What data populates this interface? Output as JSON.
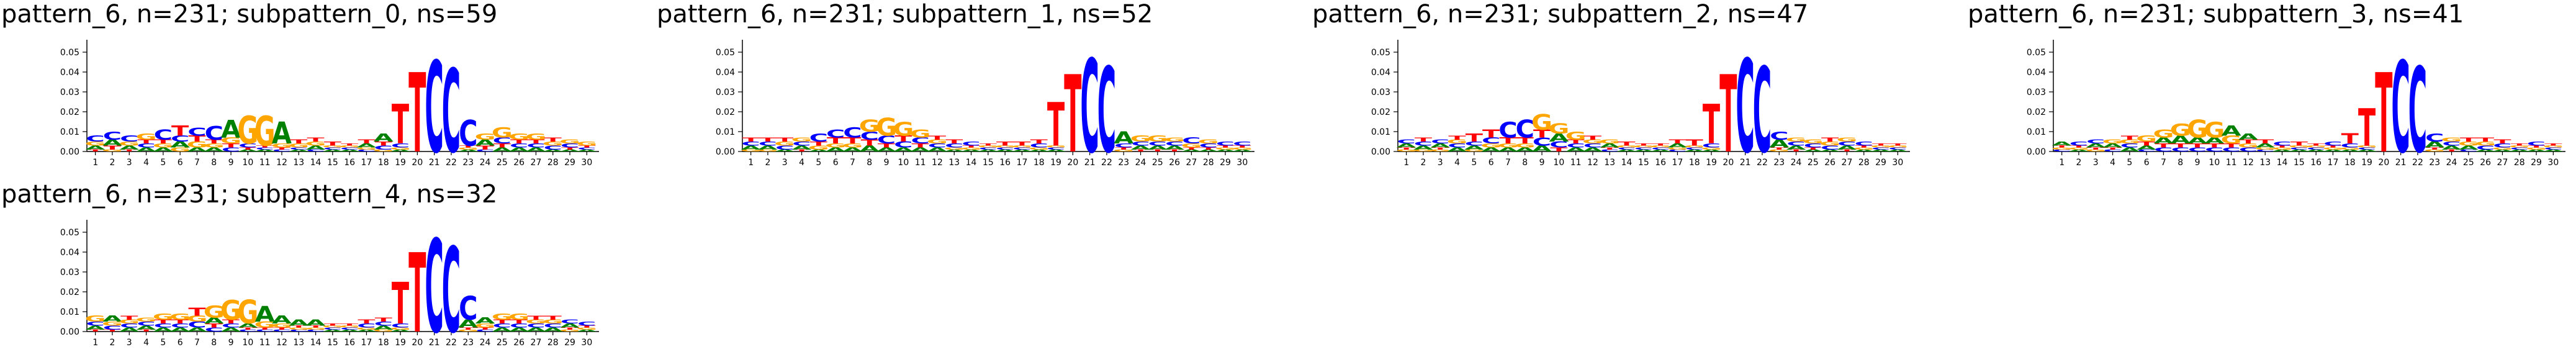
{
  "colors": {
    "A": "#008000",
    "C": "#0000ff",
    "G": "#ffa500",
    "T": "#ff0000",
    "axis": "#000000"
  },
  "chart_data": [
    {
      "type": "sequence-logo",
      "title": "pattern_6, n=231; subpattern_0, ns=59",
      "ylim": [
        0,
        0.055
      ],
      "yticks": [
        "0.00",
        "0.01",
        "0.02",
        "0.03",
        "0.04",
        "0.05"
      ],
      "xticks": [
        "1",
        "2",
        "3",
        "4",
        "5",
        "6",
        "7",
        "8",
        "9",
        "10",
        "11",
        "12",
        "13",
        "14",
        "15",
        "16",
        "17",
        "18",
        "19",
        "20",
        "21",
        "22",
        "23",
        "24",
        "25",
        "26",
        "27",
        "28",
        "29",
        "30"
      ],
      "positions": [
        {
          "A": 0.002,
          "C": 0.003,
          "G": 0.002,
          "T": 0.001
        },
        {
          "A": 0.003,
          "C": 0.004,
          "G": 0.001,
          "T": 0.002
        },
        {
          "A": 0.002,
          "C": 0.003,
          "G": 0.002,
          "T": 0.001
        },
        {
          "A": 0.002,
          "C": 0.002,
          "G": 0.003,
          "T": 0.002
        },
        {
          "A": 0.002,
          "C": 0.005,
          "G": 0.002,
          "T": 0.002
        },
        {
          "A": 0.003,
          "C": 0.003,
          "G": 0.002,
          "T": 0.005
        },
        {
          "A": 0.002,
          "C": 0.004,
          "G": 0.003,
          "T": 0.003
        },
        {
          "A": 0.002,
          "C": 0.007,
          "G": 0.002,
          "T": 0.002
        },
        {
          "A": 0.009,
          "C": 0.002,
          "G": 0.003,
          "T": 0.002
        },
        {
          "A": 0.001,
          "C": 0.002,
          "G": 0.014,
          "T": 0.001
        },
        {
          "A": 0.001,
          "C": 0.001,
          "G": 0.015,
          "T": 0.001
        },
        {
          "A": 0.011,
          "C": 0.001,
          "G": 0.002,
          "T": 0.001
        },
        {
          "A": 0.001,
          "C": 0.001,
          "G": 0.002,
          "T": 0.002
        },
        {
          "A": 0.002,
          "C": 0.001,
          "G": 0.002,
          "T": 0.002
        },
        {
          "A": 0.001,
          "C": 0.001,
          "G": 0.001,
          "T": 0.002
        },
        {
          "A": 0.001,
          "C": 0.001,
          "G": 0.001,
          "T": 0.001
        },
        {
          "A": 0.002,
          "C": 0.001,
          "G": 0.001,
          "T": 0.002
        },
        {
          "A": 0.004,
          "C": 0.002,
          "G": 0.001,
          "T": 0.002
        },
        {
          "A": 0.001,
          "C": 0.002,
          "G": 0.001,
          "T": 0.02
        },
        {
          "A": 0.0,
          "C": 0.0,
          "G": 0.0,
          "T": 0.04
        },
        {
          "A": 0.0,
          "C": 0.046,
          "G": 0.0,
          "T": 0.0
        },
        {
          "A": 0.0,
          "C": 0.042,
          "G": 0.0,
          "T": 0.0
        },
        {
          "A": 0.001,
          "C": 0.013,
          "G": 0.001,
          "T": 0.001
        },
        {
          "A": 0.003,
          "C": 0.001,
          "G": 0.003,
          "T": 0.002
        },
        {
          "A": 0.002,
          "C": 0.003,
          "G": 0.005,
          "T": 0.002
        },
        {
          "A": 0.002,
          "C": 0.002,
          "G": 0.003,
          "T": 0.002
        },
        {
          "A": 0.002,
          "C": 0.002,
          "G": 0.003,
          "T": 0.002
        },
        {
          "A": 0.001,
          "C": 0.002,
          "G": 0.002,
          "T": 0.002
        },
        {
          "A": 0.001,
          "C": 0.002,
          "G": 0.002,
          "T": 0.001
        },
        {
          "A": 0.001,
          "C": 0.001,
          "G": 0.002,
          "T": 0.001
        }
      ]
    },
    {
      "type": "sequence-logo",
      "title": "pattern_6, n=231; subpattern_1, ns=52",
      "ylim": [
        0,
        0.055
      ],
      "yticks": [
        "0.00",
        "0.01",
        "0.02",
        "0.03",
        "0.04",
        "0.05"
      ],
      "xticks": [
        "1",
        "2",
        "3",
        "4",
        "5",
        "6",
        "7",
        "8",
        "9",
        "10",
        "11",
        "12",
        "13",
        "14",
        "15",
        "16",
        "17",
        "18",
        "19",
        "20",
        "21",
        "22",
        "23",
        "24",
        "25",
        "26",
        "27",
        "28",
        "29",
        "30"
      ],
      "positions": [
        {
          "A": 0.002,
          "C": 0.002,
          "G": 0.001,
          "T": 0.002
        },
        {
          "A": 0.002,
          "C": 0.002,
          "G": 0.001,
          "T": 0.002
        },
        {
          "A": 0.001,
          "C": 0.002,
          "G": 0.002,
          "T": 0.002
        },
        {
          "A": 0.002,
          "C": 0.002,
          "G": 0.002,
          "T": 0.001
        },
        {
          "A": 0.001,
          "C": 0.004,
          "G": 0.002,
          "T": 0.002
        },
        {
          "A": 0.002,
          "C": 0.004,
          "G": 0.002,
          "T": 0.003
        },
        {
          "A": 0.002,
          "C": 0.005,
          "G": 0.002,
          "T": 0.003
        },
        {
          "A": 0.003,
          "C": 0.004,
          "G": 0.006,
          "T": 0.003
        },
        {
          "A": 0.002,
          "C": 0.004,
          "G": 0.009,
          "T": 0.002
        },
        {
          "A": 0.002,
          "C": 0.003,
          "G": 0.007,
          "T": 0.003
        },
        {
          "A": 0.002,
          "C": 0.003,
          "G": 0.004,
          "T": 0.002
        },
        {
          "A": 0.002,
          "C": 0.002,
          "G": 0.002,
          "T": 0.002
        },
        {
          "A": 0.001,
          "C": 0.002,
          "G": 0.001,
          "T": 0.002
        },
        {
          "A": 0.001,
          "C": 0.002,
          "G": 0.001,
          "T": 0.001
        },
        {
          "A": 0.001,
          "C": 0.001,
          "G": 0.001,
          "T": 0.001
        },
        {
          "A": 0.001,
          "C": 0.001,
          "G": 0.001,
          "T": 0.002
        },
        {
          "A": 0.001,
          "C": 0.001,
          "G": 0.001,
          "T": 0.002
        },
        {
          "A": 0.001,
          "C": 0.002,
          "G": 0.001,
          "T": 0.002
        },
        {
          "A": 0.001,
          "C": 0.001,
          "G": 0.001,
          "T": 0.022
        },
        {
          "A": 0.0,
          "C": 0.0,
          "G": 0.0,
          "T": 0.039
        },
        {
          "A": 0.0,
          "C": 0.047,
          "G": 0.0,
          "T": 0.0
        },
        {
          "A": 0.0,
          "C": 0.043,
          "G": 0.0,
          "T": 0.0
        },
        {
          "A": 0.006,
          "C": 0.002,
          "G": 0.001,
          "T": 0.001
        },
        {
          "A": 0.002,
          "C": 0.002,
          "G": 0.003,
          "T": 0.001
        },
        {
          "A": 0.002,
          "C": 0.002,
          "G": 0.003,
          "T": 0.001
        },
        {
          "A": 0.002,
          "C": 0.002,
          "G": 0.002,
          "T": 0.001
        },
        {
          "A": 0.001,
          "C": 0.003,
          "G": 0.002,
          "T": 0.001
        },
        {
          "A": 0.001,
          "C": 0.002,
          "G": 0.002,
          "T": 0.001
        },
        {
          "A": 0.001,
          "C": 0.002,
          "G": 0.001,
          "T": 0.001
        },
        {
          "A": 0.001,
          "C": 0.002,
          "G": 0.001,
          "T": 0.001
        }
      ]
    },
    {
      "type": "sequence-logo",
      "title": "pattern_6, n=231; subpattern_2, ns=47",
      "ylim": [
        0,
        0.055
      ],
      "yticks": [
        "0.00",
        "0.01",
        "0.02",
        "0.03",
        "0.04",
        "0.05"
      ],
      "xticks": [
        "1",
        "2",
        "3",
        "4",
        "5",
        "6",
        "7",
        "8",
        "9",
        "10",
        "11",
        "12",
        "13",
        "14",
        "15",
        "16",
        "17",
        "18",
        "19",
        "20",
        "21",
        "22",
        "23",
        "24",
        "25",
        "26",
        "27",
        "28",
        "29",
        "30"
      ],
      "positions": [
        {
          "A": 0.002,
          "C": 0.002,
          "G": 0.001,
          "T": 0.001
        },
        {
          "A": 0.002,
          "C": 0.002,
          "G": 0.001,
          "T": 0.002
        },
        {
          "A": 0.002,
          "C": 0.002,
          "G": 0.001,
          "T": 0.001
        },
        {
          "A": 0.002,
          "C": 0.002,
          "G": 0.002,
          "T": 0.002
        },
        {
          "A": 0.002,
          "C": 0.002,
          "G": 0.001,
          "T": 0.004
        },
        {
          "A": 0.002,
          "C": 0.003,
          "G": 0.002,
          "T": 0.004
        },
        {
          "A": 0.002,
          "C": 0.008,
          "G": 0.002,
          "T": 0.003
        },
        {
          "A": 0.002,
          "C": 0.009,
          "G": 0.002,
          "T": 0.003
        },
        {
          "A": 0.003,
          "C": 0.004,
          "G": 0.008,
          "T": 0.004
        },
        {
          "A": 0.004,
          "C": 0.003,
          "G": 0.005,
          "T": 0.002
        },
        {
          "A": 0.002,
          "C": 0.002,
          "G": 0.004,
          "T": 0.002
        },
        {
          "A": 0.002,
          "C": 0.002,
          "G": 0.002,
          "T": 0.002
        },
        {
          "A": 0.002,
          "C": 0.001,
          "G": 0.002,
          "T": 0.001
        },
        {
          "A": 0.001,
          "C": 0.001,
          "G": 0.001,
          "T": 0.002
        },
        {
          "A": 0.001,
          "C": 0.001,
          "G": 0.001,
          "T": 0.001
        },
        {
          "A": 0.001,
          "C": 0.001,
          "G": 0.001,
          "T": 0.001
        },
        {
          "A": 0.002,
          "C": 0.001,
          "G": 0.001,
          "T": 0.002
        },
        {
          "A": 0.001,
          "C": 0.001,
          "G": 0.001,
          "T": 0.003
        },
        {
          "A": 0.001,
          "C": 0.002,
          "G": 0.001,
          "T": 0.02
        },
        {
          "A": 0.0,
          "C": 0.0,
          "G": 0.0,
          "T": 0.039
        },
        {
          "A": 0.0,
          "C": 0.047,
          "G": 0.0,
          "T": 0.0
        },
        {
          "A": 0.0,
          "C": 0.043,
          "G": 0.0,
          "T": 0.0
        },
        {
          "A": 0.004,
          "C": 0.004,
          "G": 0.001,
          "T": 0.001
        },
        {
          "A": 0.002,
          "C": 0.002,
          "G": 0.002,
          "T": 0.001
        },
        {
          "A": 0.001,
          "C": 0.002,
          "G": 0.002,
          "T": 0.001
        },
        {
          "A": 0.001,
          "C": 0.002,
          "G": 0.002,
          "T": 0.002
        },
        {
          "A": 0.002,
          "C": 0.002,
          "G": 0.002,
          "T": 0.001
        },
        {
          "A": 0.001,
          "C": 0.002,
          "G": 0.001,
          "T": 0.001
        },
        {
          "A": 0.001,
          "C": 0.001,
          "G": 0.001,
          "T": 0.001
        },
        {
          "A": 0.001,
          "C": 0.001,
          "G": 0.001,
          "T": 0.001
        }
      ]
    },
    {
      "type": "sequence-logo",
      "title": "pattern_6, n=231; subpattern_3, ns=41",
      "ylim": [
        0,
        0.055
      ],
      "yticks": [
        "0.00",
        "0.01",
        "0.02",
        "0.03",
        "0.04",
        "0.05"
      ],
      "xticks": [
        "1",
        "2",
        "3",
        "4",
        "5",
        "6",
        "7",
        "8",
        "9",
        "10",
        "11",
        "12",
        "13",
        "14",
        "15",
        "16",
        "17",
        "18",
        "19",
        "20",
        "21",
        "22",
        "23",
        "24",
        "25",
        "26",
        "27",
        "28",
        "29",
        "30"
      ],
      "positions": [
        {
          "A": 0.002,
          "C": 0.001,
          "G": 0.001,
          "T": 0.001
        },
        {
          "A": 0.001,
          "C": 0.002,
          "G": 0.001,
          "T": 0.001
        },
        {
          "A": 0.002,
          "C": 0.002,
          "G": 0.001,
          "T": 0.001
        },
        {
          "A": 0.002,
          "C": 0.001,
          "G": 0.002,
          "T": 0.001
        },
        {
          "A": 0.002,
          "C": 0.002,
          "G": 0.002,
          "T": 0.002
        },
        {
          "A": 0.002,
          "C": 0.001,
          "G": 0.003,
          "T": 0.002
        },
        {
          "A": 0.003,
          "C": 0.002,
          "G": 0.004,
          "T": 0.002
        },
        {
          "A": 0.004,
          "C": 0.002,
          "G": 0.006,
          "T": 0.002
        },
        {
          "A": 0.003,
          "C": 0.002,
          "G": 0.009,
          "T": 0.002
        },
        {
          "A": 0.003,
          "C": 0.002,
          "G": 0.008,
          "T": 0.002
        },
        {
          "A": 0.005,
          "C": 0.002,
          "G": 0.004,
          "T": 0.002
        },
        {
          "A": 0.003,
          "C": 0.002,
          "G": 0.002,
          "T": 0.002
        },
        {
          "A": 0.002,
          "C": 0.001,
          "G": 0.001,
          "T": 0.002
        },
        {
          "A": 0.001,
          "C": 0.002,
          "G": 0.001,
          "T": 0.001
        },
        {
          "A": 0.001,
          "C": 0.001,
          "G": 0.001,
          "T": 0.002
        },
        {
          "A": 0.001,
          "C": 0.001,
          "G": 0.001,
          "T": 0.001
        },
        {
          "A": 0.001,
          "C": 0.002,
          "G": 0.001,
          "T": 0.001
        },
        {
          "A": 0.001,
          "C": 0.002,
          "G": 0.001,
          "T": 0.005
        },
        {
          "A": 0.001,
          "C": 0.001,
          "G": 0.001,
          "T": 0.019
        },
        {
          "A": 0.0,
          "C": 0.0,
          "G": 0.0,
          "T": 0.04
        },
        {
          "A": 0.0,
          "C": 0.046,
          "G": 0.0,
          "T": 0.0
        },
        {
          "A": 0.0,
          "C": 0.043,
          "G": 0.0,
          "T": 0.0
        },
        {
          "A": 0.003,
          "C": 0.004,
          "G": 0.001,
          "T": 0.001
        },
        {
          "A": 0.002,
          "C": 0.002,
          "G": 0.002,
          "T": 0.001
        },
        {
          "A": 0.002,
          "C": 0.001,
          "G": 0.002,
          "T": 0.002
        },
        {
          "A": 0.001,
          "C": 0.002,
          "G": 0.002,
          "T": 0.002
        },
        {
          "A": 0.001,
          "C": 0.002,
          "G": 0.001,
          "T": 0.002
        },
        {
          "A": 0.001,
          "C": 0.001,
          "G": 0.001,
          "T": 0.001
        },
        {
          "A": 0.001,
          "C": 0.002,
          "G": 0.001,
          "T": 0.001
        },
        {
          "A": 0.001,
          "C": 0.001,
          "G": 0.001,
          "T": 0.001
        }
      ]
    },
    {
      "type": "sequence-logo",
      "title": "pattern_6, n=231; subpattern_4, ns=32",
      "ylim": [
        0,
        0.055
      ],
      "yticks": [
        "0.00",
        "0.01",
        "0.02",
        "0.03",
        "0.04",
        "0.05"
      ],
      "xticks": [
        "1",
        "2",
        "3",
        "4",
        "5",
        "6",
        "7",
        "8",
        "9",
        "10",
        "11",
        "12",
        "13",
        "14",
        "15",
        "16",
        "17",
        "18",
        "19",
        "20",
        "21",
        "22",
        "23",
        "24",
        "25",
        "26",
        "27",
        "28",
        "29",
        "30"
      ],
      "positions": [
        {
          "A": 0.002,
          "C": 0.002,
          "G": 0.003,
          "T": 0.001
        },
        {
          "A": 0.003,
          "C": 0.002,
          "G": 0.002,
          "T": 0.001
        },
        {
          "A": 0.002,
          "C": 0.002,
          "G": 0.002,
          "T": 0.002
        },
        {
          "A": 0.002,
          "C": 0.002,
          "G": 0.002,
          "T": 0.001
        },
        {
          "A": 0.002,
          "C": 0.002,
          "G": 0.003,
          "T": 0.002
        },
        {
          "A": 0.002,
          "C": 0.002,
          "G": 0.003,
          "T": 0.002
        },
        {
          "A": 0.002,
          "C": 0.003,
          "G": 0.003,
          "T": 0.004
        },
        {
          "A": 0.003,
          "C": 0.002,
          "G": 0.006,
          "T": 0.002
        },
        {
          "A": 0.002,
          "C": 0.002,
          "G": 0.01,
          "T": 0.002
        },
        {
          "A": 0.002,
          "C": 0.001,
          "G": 0.012,
          "T": 0.001
        },
        {
          "A": 0.008,
          "C": 0.001,
          "G": 0.003,
          "T": 0.001
        },
        {
          "A": 0.004,
          "C": 0.001,
          "G": 0.002,
          "T": 0.001
        },
        {
          "A": 0.003,
          "C": 0.001,
          "G": 0.001,
          "T": 0.001
        },
        {
          "A": 0.003,
          "C": 0.001,
          "G": 0.001,
          "T": 0.001
        },
        {
          "A": 0.001,
          "C": 0.001,
          "G": 0.001,
          "T": 0.001
        },
        {
          "A": 0.001,
          "C": 0.001,
          "G": 0.001,
          "T": 0.001
        },
        {
          "A": 0.001,
          "C": 0.002,
          "G": 0.001,
          "T": 0.002
        },
        {
          "A": 0.002,
          "C": 0.002,
          "G": 0.001,
          "T": 0.002
        },
        {
          "A": 0.001,
          "C": 0.002,
          "G": 0.001,
          "T": 0.021
        },
        {
          "A": 0.0,
          "C": 0.0,
          "G": 0.0,
          "T": 0.04
        },
        {
          "A": 0.0,
          "C": 0.047,
          "G": 0.0,
          "T": 0.0
        },
        {
          "A": 0.0,
          "C": 0.043,
          "G": 0.0,
          "T": 0.0
        },
        {
          "A": 0.004,
          "C": 0.012,
          "G": 0.001,
          "T": 0.001
        },
        {
          "A": 0.003,
          "C": 0.001,
          "G": 0.002,
          "T": 0.001
        },
        {
          "A": 0.002,
          "C": 0.002,
          "G": 0.003,
          "T": 0.002
        },
        {
          "A": 0.002,
          "C": 0.002,
          "G": 0.003,
          "T": 0.002
        },
        {
          "A": 0.002,
          "C": 0.002,
          "G": 0.002,
          "T": 0.002
        },
        {
          "A": 0.002,
          "C": 0.002,
          "G": 0.002,
          "T": 0.002
        },
        {
          "A": 0.002,
          "C": 0.002,
          "G": 0.001,
          "T": 0.001
        },
        {
          "A": 0.001,
          "C": 0.002,
          "G": 0.001,
          "T": 0.001
        }
      ]
    }
  ]
}
